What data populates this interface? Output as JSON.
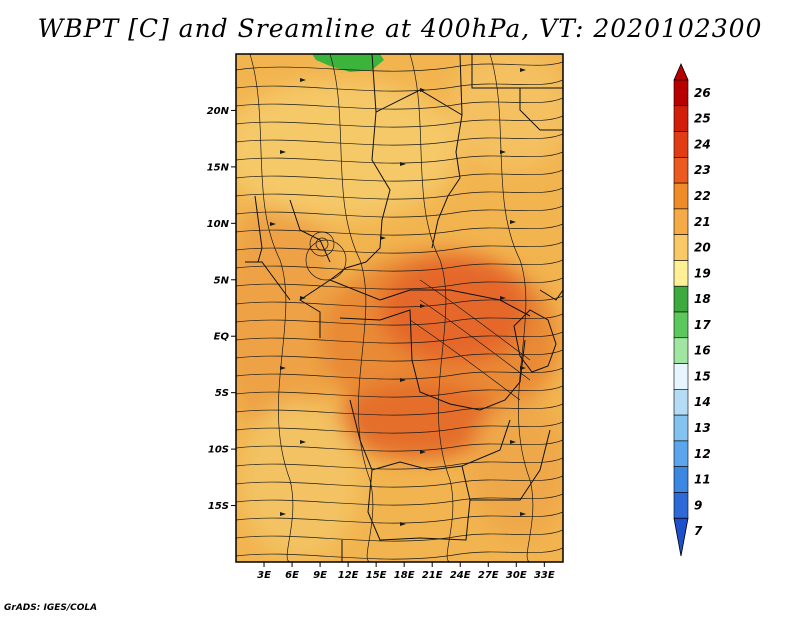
{
  "title": "WBPT [C] and Sreamline at 400hPa, VT: 2020102300",
  "footer": "GrADS: IGES/COLA",
  "map": {
    "lon_range": [
      0,
      35
    ],
    "lat_range": [
      -20,
      25
    ],
    "lon_ticks": [
      "3E",
      "6E",
      "9E",
      "12E",
      "15E",
      "18E",
      "21E",
      "24E",
      "27E",
      "30E",
      "33E"
    ],
    "lat_ticks": [
      "20N",
      "15N",
      "10N",
      "5N",
      "EQ",
      "5S",
      "10S",
      "15S"
    ],
    "field_colors": {
      "level_18_green": "#3cb43c",
      "level_20": "#f5cd6e",
      "level_21": "#f0aa4b",
      "level_22": "#eb8c32",
      "level_23": "#e6641e"
    }
  },
  "colorbar": {
    "labels": [
      "26",
      "25",
      "24",
      "23",
      "22",
      "21",
      "20",
      "19",
      "18",
      "17",
      "16",
      "15",
      "14",
      "13",
      "12",
      "11",
      "9",
      "7"
    ],
    "colors": [
      "#b90000",
      "#d21e0a",
      "#e13c14",
      "#eb5a1e",
      "#f08c28",
      "#f5aa46",
      "#fac864",
      "#fff096",
      "#3caa3c",
      "#5ac85a",
      "#a0e6a0",
      "#e6f5ff",
      "#b4dcf5",
      "#82c3f0",
      "#5aa5eb",
      "#3c87e1",
      "#2d69d7",
      "#1e50cd"
    ]
  }
}
